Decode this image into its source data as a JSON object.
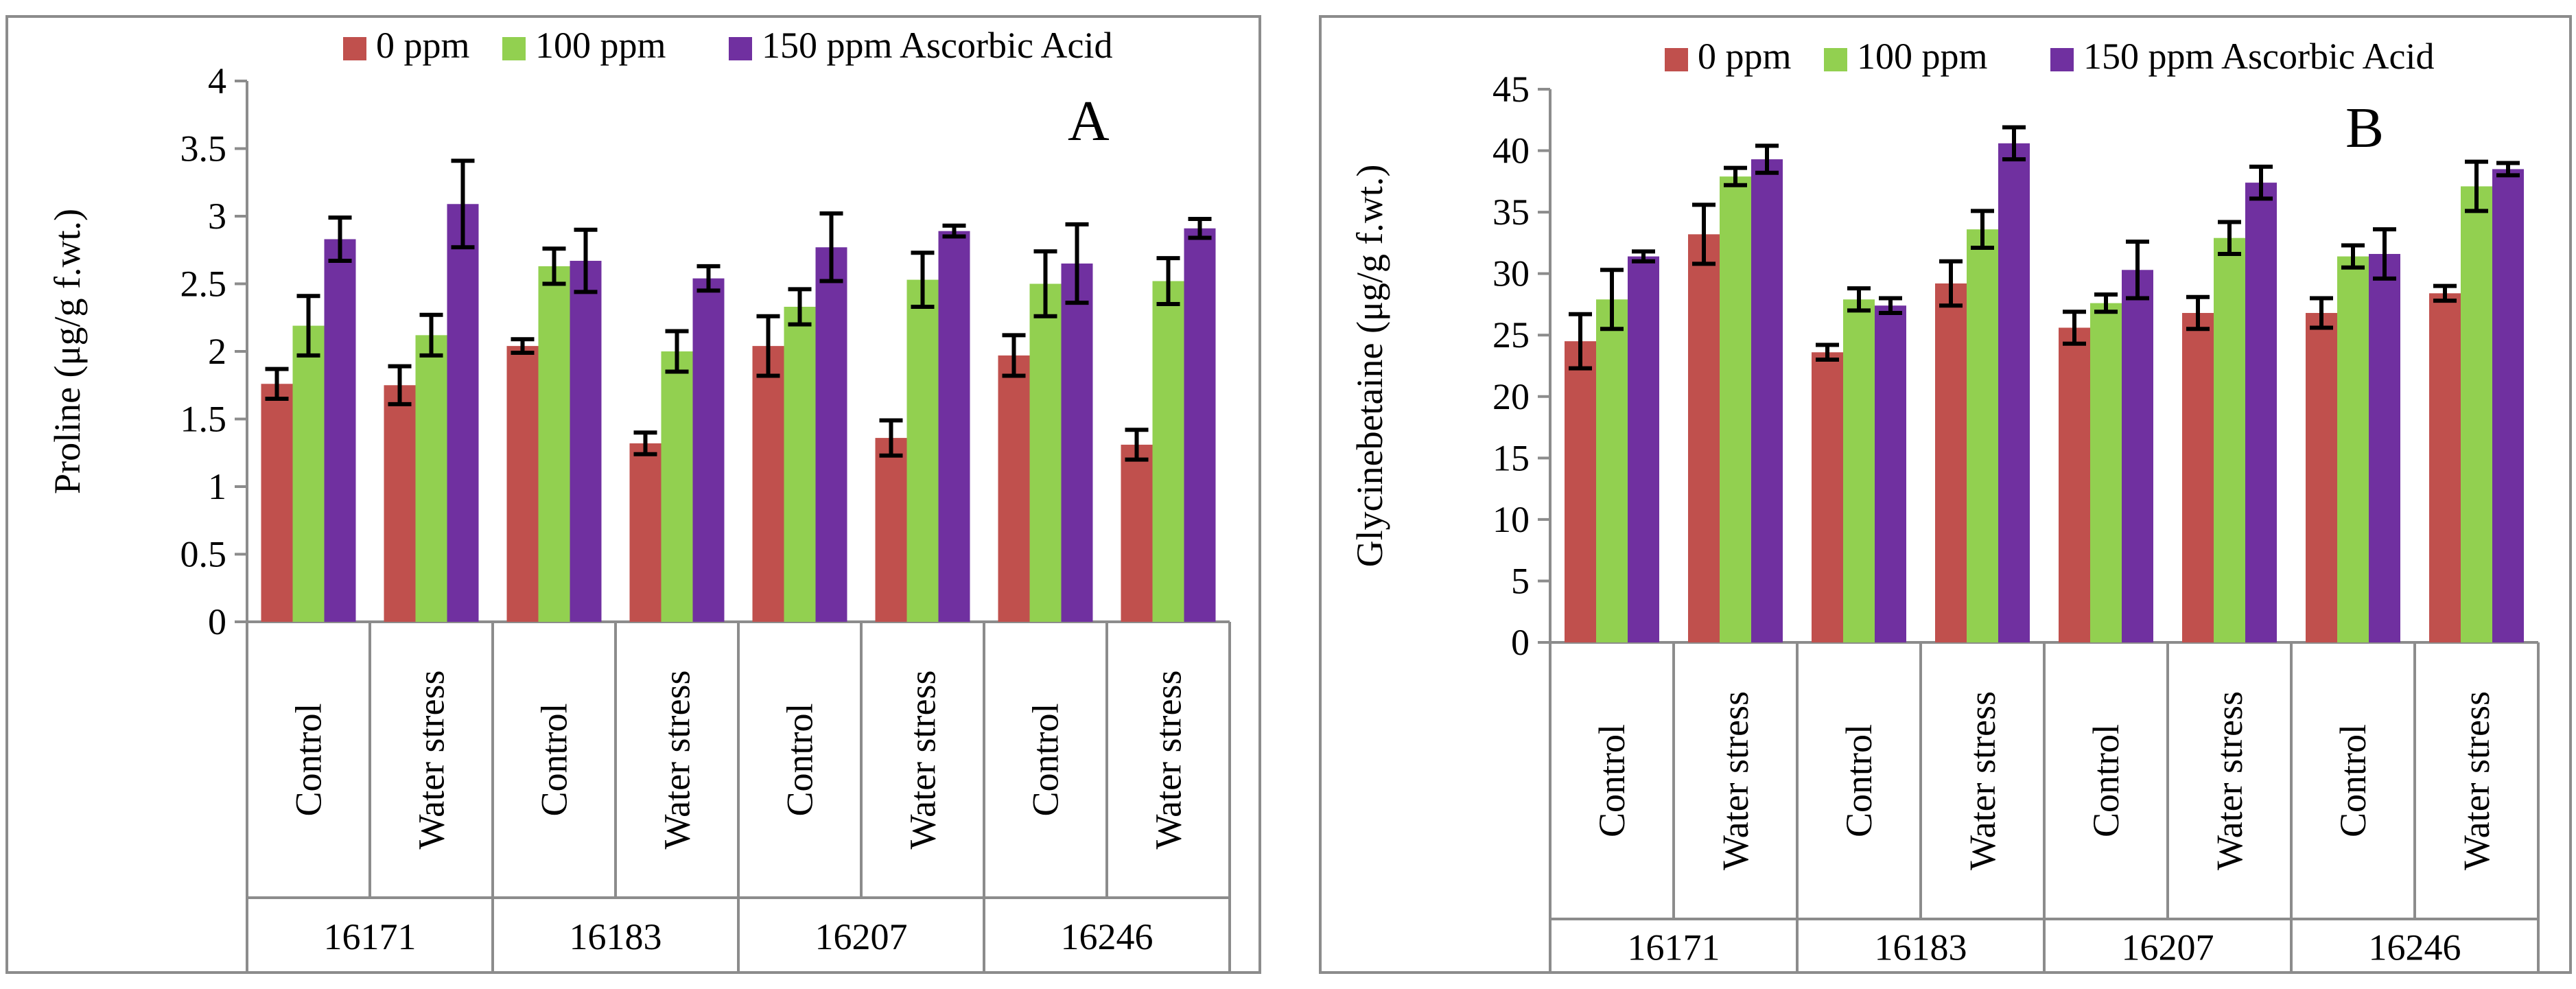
{
  "colors": {
    "0 ppm": "#c0504d",
    "100 ppm": "#92d050",
    "150 ppm Ascorbic Acid": "#7030a0"
  },
  "chart_data": [
    {
      "type": "bar",
      "panel_letter": "A",
      "ylabel": "Proline (μg/g f.wt.)",
      "ylim": [
        0,
        4
      ],
      "yticks": [
        "0",
        "0.5",
        "1",
        "1.5",
        "2",
        "2.5",
        "3",
        "3.5",
        "4"
      ],
      "legend": [
        "0 ppm",
        "100 ppm",
        "150 ppm Ascorbic Acid"
      ],
      "groups": [
        "16171",
        "16183",
        "16207",
        "16246"
      ],
      "categories": [
        "Control",
        "Water stress",
        "Control",
        "Water stress",
        "Control",
        "Water stress",
        "Control",
        "Water stress"
      ],
      "series": [
        {
          "name": "0 ppm",
          "values": [
            1.76,
            1.75,
            2.04,
            1.32,
            2.04,
            1.36,
            1.97,
            1.31
          ],
          "errors": [
            0.11,
            0.14,
            0.05,
            0.08,
            0.22,
            0.13,
            0.15,
            0.11
          ]
        },
        {
          "name": "100 ppm",
          "values": [
            2.19,
            2.12,
            2.63,
            2.0,
            2.33,
            2.53,
            2.5,
            2.52
          ],
          "errors": [
            0.22,
            0.15,
            0.13,
            0.15,
            0.13,
            0.2,
            0.24,
            0.17
          ]
        },
        {
          "name": "150 ppm Ascorbic Acid",
          "values": [
            2.83,
            3.09,
            2.67,
            2.54,
            2.77,
            2.89,
            2.65,
            2.91
          ],
          "errors": [
            0.16,
            0.32,
            0.23,
            0.09,
            0.25,
            0.04,
            0.29,
            0.07
          ]
        }
      ]
    },
    {
      "type": "bar",
      "panel_letter": "B",
      "ylabel": "Glycinebetaine (μg/g f.wt.)",
      "ylim": [
        0,
        45
      ],
      "yticks": [
        "0",
        "5",
        "10",
        "15",
        "20",
        "25",
        "30",
        "35",
        "40",
        "45"
      ],
      "legend": [
        "0 ppm",
        "100 ppm",
        "150 ppm Ascorbic Acid"
      ],
      "groups": [
        "16171",
        "16183",
        "16207",
        "16246"
      ],
      "categories": [
        "Control",
        "Water stress",
        "Control",
        "Water stress",
        "Control",
        "Water stress",
        "Control",
        "Water stress"
      ],
      "series": [
        {
          "name": "0 ppm",
          "values": [
            24.5,
            33.2,
            23.6,
            29.2,
            25.6,
            26.8,
            26.8,
            28.4
          ],
          "errors": [
            2.2,
            2.4,
            0.6,
            1.8,
            1.3,
            1.3,
            1.2,
            0.6
          ]
        },
        {
          "name": "100 ppm",
          "values": [
            27.9,
            37.9,
            27.9,
            33.6,
            27.6,
            32.9,
            31.4,
            37.1
          ],
          "errors": [
            2.4,
            0.7,
            0.9,
            1.5,
            0.7,
            1.3,
            0.9,
            2.0
          ]
        },
        {
          "name": "150 ppm Ascorbic Acid",
          "values": [
            31.4,
            39.3,
            27.4,
            40.6,
            30.3,
            37.4,
            31.6,
            38.5
          ],
          "errors": [
            0.4,
            1.1,
            0.6,
            1.3,
            2.3,
            1.3,
            2.0,
            0.5
          ]
        }
      ]
    }
  ]
}
